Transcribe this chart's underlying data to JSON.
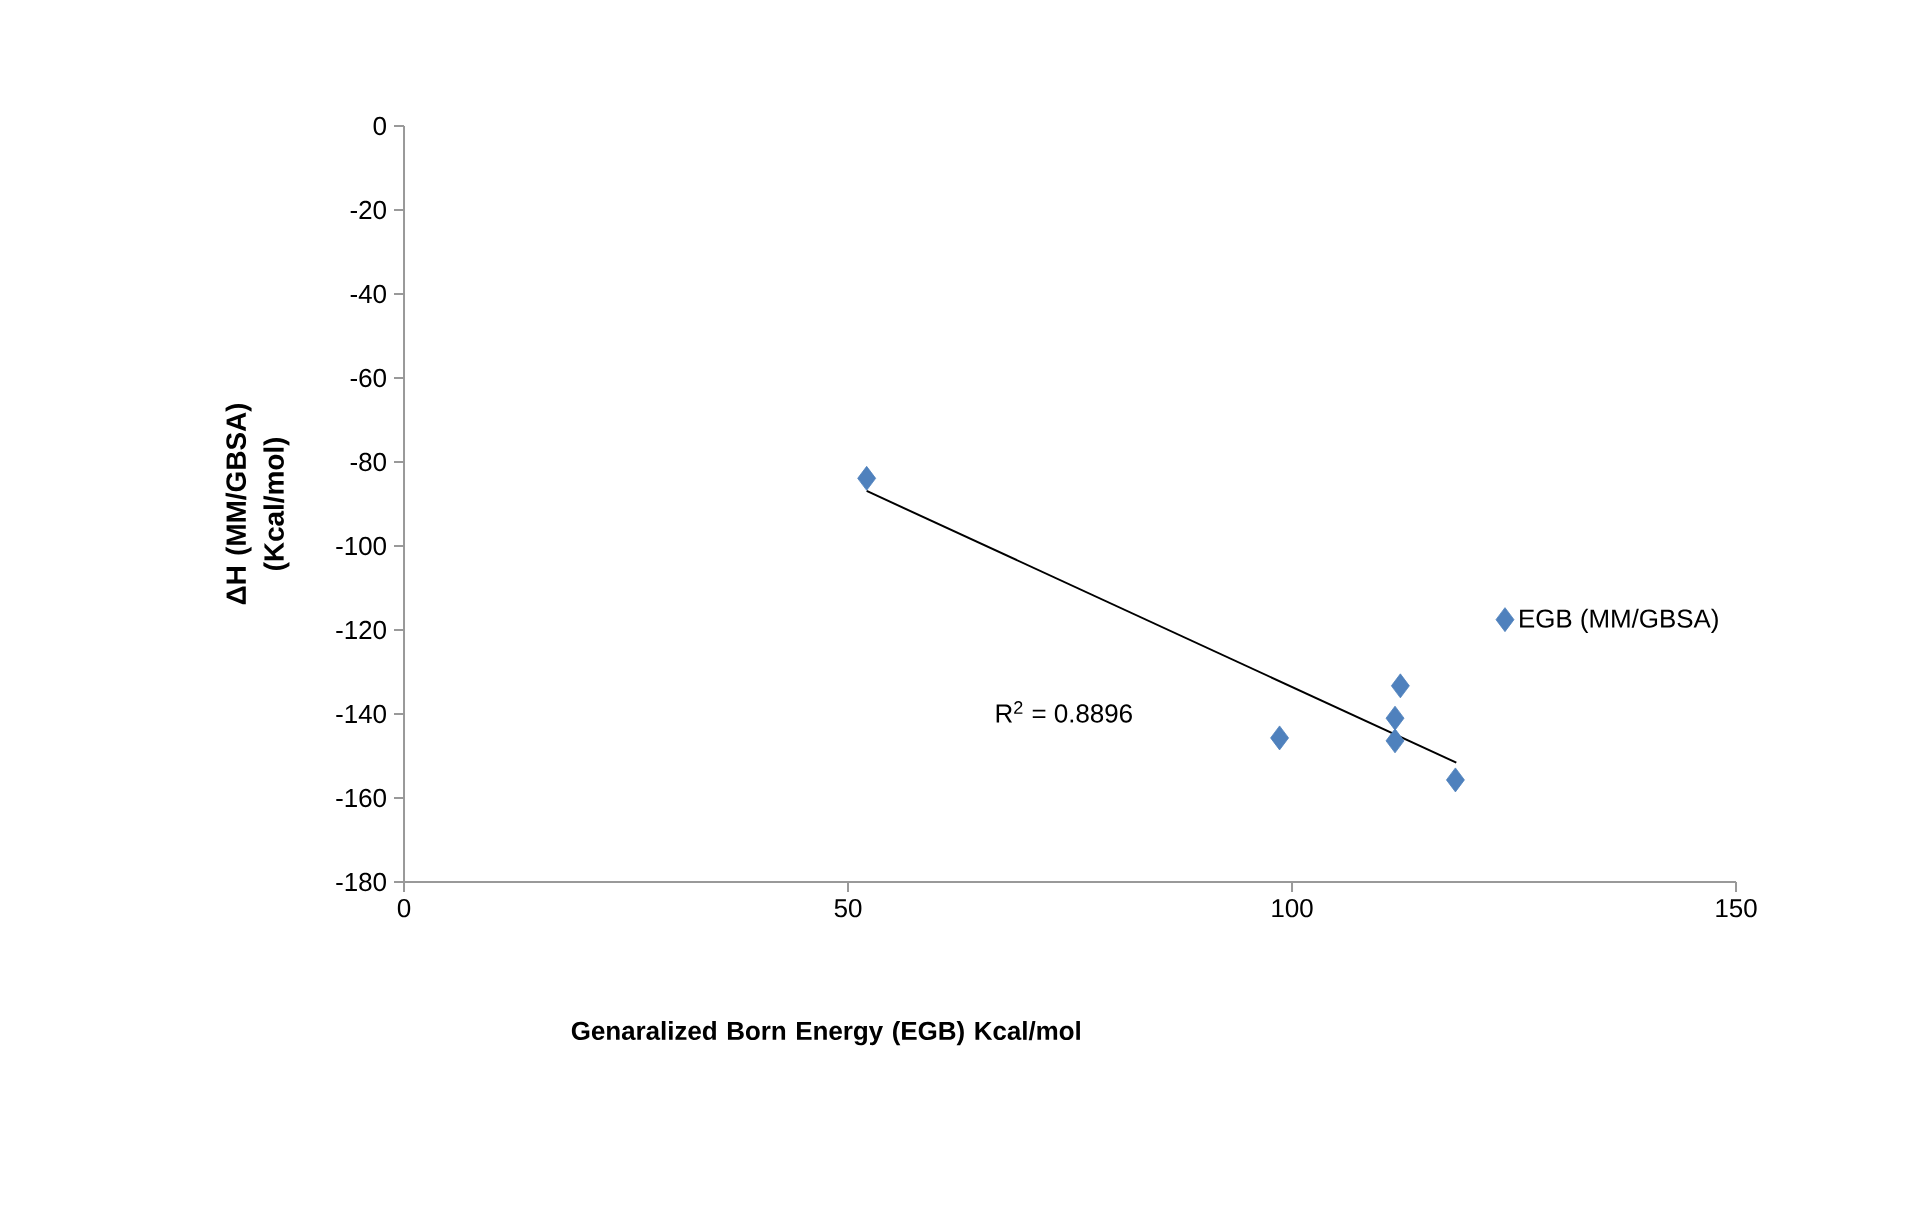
{
  "chart_data": {
    "type": "scatter",
    "xlabel": "Genaralized Born Energy (EGB) Kcal/mol",
    "ylabel": "ΔH (MM/GBSA) (Kcal/mol)",
    "x": [
      52.1,
      98.6,
      112.2,
      111.6,
      111.6,
      118.4
    ],
    "series": [
      {
        "name": "EGB (MM/GBSA)",
        "color": "#4f81bd",
        "marker": "diamond",
        "values": [
          -83.9,
          -145.7,
          -133.3,
          -141,
          -146.4,
          -155.7
        ]
      },
      {
        "type": "line",
        "color": "#000000",
        "marker": "none",
        "x": [
          52.1,
          118.5
        ],
        "values": [
          -86.9,
          -151.6
        ]
      }
    ],
    "xlim": [
      0,
      150
    ],
    "xticks": [
      0,
      50,
      100,
      150
    ],
    "ylim": [
      -180,
      0
    ],
    "yticks": [
      -180,
      -160,
      -140,
      -120,
      -100,
      -80,
      -60,
      -40,
      -20,
      0
    ],
    "grid": false,
    "legend": "right",
    "annotations": [
      "R$^{2}$ = 0.8896"
    ]
  }
}
